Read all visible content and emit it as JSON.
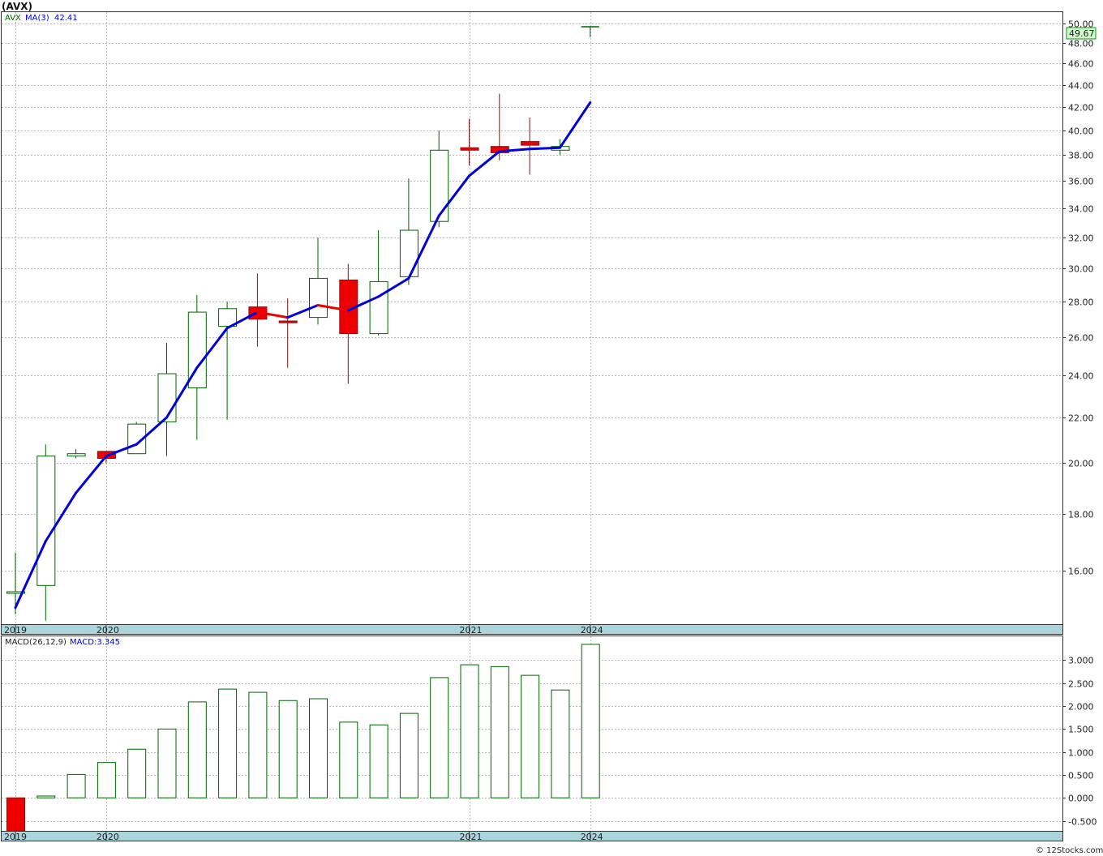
{
  "header": {
    "title": "(AVX)"
  },
  "price_panel": {
    "legend": {
      "symbol": "AVX",
      "ma_label": "MA(3)",
      "ma_value": "42.41"
    },
    "last_price_label": "49.67"
  },
  "macd_panel": {
    "legend": {
      "label": "MACD(26,12,9)",
      "value_label": "MACD:3.345"
    }
  },
  "footer": {
    "credit": "© 12Stocks.com"
  },
  "colors": {
    "up": "#006400",
    "down": "#ee0000",
    "ma": "#0000dd",
    "axisband": "#acd4dc",
    "grid": "#bbbbbb"
  },
  "chart_data": [
    {
      "type": "candlestick",
      "scale": "log",
      "ylim": [
        14.3,
        51.2
      ],
      "ytick_labels": [
        "16.00",
        "18.00",
        "20.00",
        "22.00",
        "24.00",
        "26.00",
        "28.00",
        "30.00",
        "32.00",
        "34.00",
        "36.00",
        "38.00",
        "40.00",
        "42.00",
        "44.00",
        "46.00",
        "48.00",
        "50.00"
      ],
      "x_labels": [
        {
          "bar": 0,
          "text": "2019"
        },
        {
          "bar": 3,
          "text": "2020"
        },
        {
          "bar": 15,
          "text": "2021"
        },
        {
          "bar": 19,
          "text": "2024"
        }
      ],
      "candles": [
        {
          "open": 15.3,
          "high": 16.6,
          "low": 14.6,
          "close": 15.3
        },
        {
          "open": 15.5,
          "high": 20.8,
          "low": 14.4,
          "close": 20.3
        },
        {
          "open": 20.3,
          "high": 20.6,
          "low": 20.2,
          "close": 20.4
        },
        {
          "open": 20.5,
          "high": 20.5,
          "low": 20.0,
          "close": 20.2
        },
        {
          "open": 20.4,
          "high": 21.8,
          "low": 20.4,
          "close": 21.7
        },
        {
          "open": 21.8,
          "high": 25.7,
          "low": 20.3,
          "close": 24.1
        },
        {
          "open": 23.4,
          "high": 28.4,
          "low": 21.0,
          "close": 27.4
        },
        {
          "open": 26.6,
          "high": 28.0,
          "low": 21.9,
          "close": 27.6
        },
        {
          "open": 27.7,
          "high": 29.7,
          "low": 25.5,
          "close": 27.0
        },
        {
          "open": 26.9,
          "high": 28.2,
          "low": 24.4,
          "close": 26.8
        },
        {
          "open": 27.1,
          "high": 32.0,
          "low": 26.7,
          "close": 29.4
        },
        {
          "open": 29.3,
          "high": 30.3,
          "low": 23.6,
          "close": 26.2
        },
        {
          "open": 26.2,
          "high": 32.5,
          "low": 26.1,
          "close": 29.2
        },
        {
          "open": 29.5,
          "high": 36.2,
          "low": 29.0,
          "close": 32.5
        },
        {
          "open": 33.1,
          "high": 40.0,
          "low": 32.7,
          "close": 38.4
        },
        {
          "open": 38.6,
          "high": 41.0,
          "low": 37.2,
          "close": 38.4
        },
        {
          "open": 38.7,
          "high": 43.2,
          "low": 37.6,
          "close": 38.2
        },
        {
          "open": 39.1,
          "high": 41.1,
          "low": 36.5,
          "close": 38.8
        },
        {
          "open": 38.4,
          "high": 39.3,
          "low": 38.0,
          "close": 38.7
        },
        {
          "open": 49.67,
          "high": 49.67,
          "low": 48.6,
          "close": 49.67
        }
      ],
      "ma3": [
        14.8,
        17.0,
        18.8,
        20.3,
        20.8,
        22.0,
        24.4,
        26.5,
        27.4,
        27.1,
        27.8,
        27.5,
        28.3,
        29.4,
        33.5,
        36.4,
        38.3,
        38.5,
        38.6,
        42.41
      ]
    },
    {
      "type": "bar",
      "title": "MACD(26,12,9)",
      "ylim": [
        -0.72,
        3.52
      ],
      "ytick_values": [
        -0.5,
        0,
        0.5,
        1,
        1.5,
        2,
        2.5,
        3
      ],
      "ytick_labels": [
        "-0.500",
        "0.000",
        "0.500",
        "1.000",
        "1.500",
        "2.000",
        "2.500",
        "3.000"
      ],
      "values": [
        -0.75,
        0.04,
        0.51,
        0.77,
        1.06,
        1.5,
        2.09,
        2.37,
        2.3,
        2.12,
        2.16,
        1.65,
        1.59,
        1.84,
        2.62,
        2.9,
        2.86,
        2.67,
        2.35,
        3.345
      ]
    }
  ]
}
